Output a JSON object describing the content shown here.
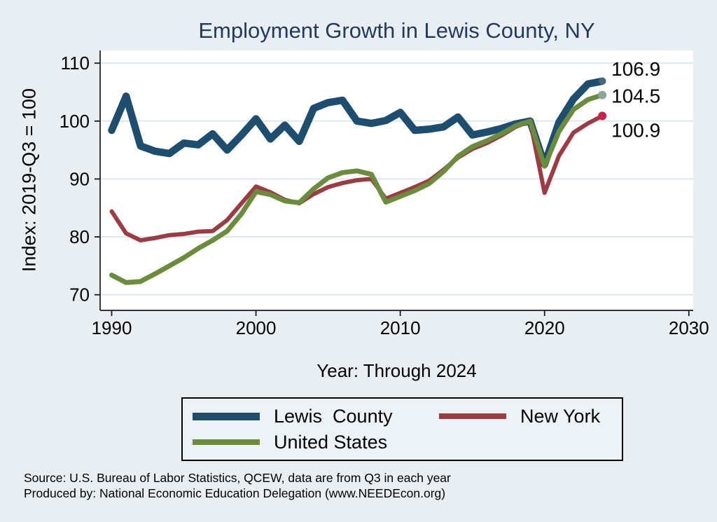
{
  "footer": {
    "source": "Source: U.S. Bureau of Labor Statistics, QCEW, data are from Q3 in each year",
    "produced": "Produced by: National Economic Education Delegation (www.NEEDEcon.org)"
  },
  "background_color": "#e9eef3",
  "title_color": "#213a5e",
  "gridline_color": "#dce8f1",
  "axis_color": "#1a1a1a",
  "chart_data": {
    "type": "line",
    "title": "Employment Growth in Lewis County, NY",
    "xlabel": "Year: Through 2024",
    "ylabel": "Index: 2019-Q3 = 100",
    "x_start": 1990,
    "x": [
      1990,
      1991,
      1992,
      1993,
      1994,
      1995,
      1996,
      1997,
      1998,
      1999,
      2000,
      2001,
      2002,
      2003,
      2004,
      2005,
      2006,
      2007,
      2008,
      2009,
      2010,
      2011,
      2012,
      2013,
      2014,
      2015,
      2016,
      2017,
      2018,
      2019,
      2020,
      2021,
      2022,
      2023,
      2024
    ],
    "x_ticks": [
      1990,
      2000,
      2010,
      2020,
      2030
    ],
    "y_ticks": [
      70,
      80,
      90,
      100,
      110
    ],
    "xlim": [
      1989.2,
      2030.3
    ],
    "ylim": [
      67.3,
      112.2
    ],
    "grid": "horizontal",
    "legend_position": "bottom",
    "series": [
      {
        "name": "Lewis  County",
        "color": "#1e4e6f",
        "end_dot_color": "#45687e",
        "width": 10.5,
        "end_label": "106.9",
        "values": [
          98.4,
          104.3,
          95.7,
          94.8,
          94.4,
          96.2,
          95.9,
          97.8,
          95.0,
          97.6,
          100.4,
          96.9,
          99.3,
          96.5,
          102.2,
          103.2,
          103.6,
          100.0,
          99.6,
          100.1,
          101.5,
          98.4,
          98.6,
          99.0,
          100.7,
          97.6,
          98.1,
          98.7,
          99.5,
          100.0,
          92.5,
          99.8,
          103.8,
          106.4,
          106.9
        ]
      },
      {
        "name": "New York",
        "color": "#9c3b42",
        "end_dot_color": "#c9224a",
        "width": 6,
        "end_label": "100.9",
        "values": [
          84.4,
          80.6,
          79.4,
          79.8,
          80.3,
          80.5,
          80.9,
          81.0,
          82.9,
          85.8,
          88.7,
          87.7,
          86.4,
          85.8,
          87.4,
          88.6,
          89.3,
          89.8,
          90.0,
          86.6,
          87.6,
          88.6,
          89.7,
          91.6,
          93.7,
          95.2,
          96.2,
          97.5,
          99.0,
          100.0,
          87.6,
          94.0,
          98.0,
          99.6,
          100.9
        ]
      },
      {
        "name": "United States",
        "color": "#6b8c3d",
        "end_dot_color": "#8fa596",
        "width": 7,
        "end_label": "104.5",
        "values": [
          73.4,
          72.1,
          72.3,
          73.6,
          75.0,
          76.4,
          78.0,
          79.4,
          81.0,
          84.0,
          87.8,
          87.3,
          86.2,
          85.9,
          88.3,
          90.2,
          91.1,
          91.4,
          90.8,
          86.0,
          87.0,
          88.0,
          89.2,
          91.3,
          93.9,
          95.6,
          96.6,
          97.8,
          99.2,
          100.0,
          92.2,
          98.2,
          102.0,
          103.7,
          104.5
        ]
      }
    ]
  }
}
